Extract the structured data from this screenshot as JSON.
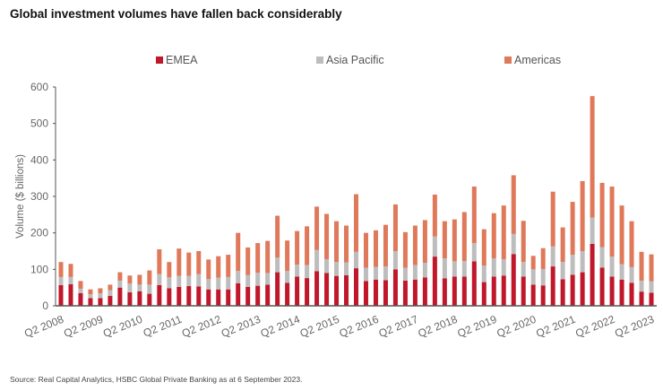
{
  "title": "Global investment volumes have fallen back considerably",
  "source": "Source: Real Capital Analytics, HSBC Global Private Banking as at 6 September 2023.",
  "legend": [
    {
      "label": "EMEA",
      "color": "#c0172b"
    },
    {
      "label": "Asia Pacific",
      "color": "#bdbdbd"
    },
    {
      "label": "Americas",
      "color": "#e0785a"
    }
  ],
  "chart_data": {
    "type": "bar",
    "stacked": true,
    "title": "Global investment volumes have fallen back considerably",
    "xlabel": "",
    "ylabel": "Volume ($ billions)",
    "ylim": [
      0,
      600
    ],
    "yticks": [
      0,
      100,
      200,
      300,
      400,
      500,
      600
    ],
    "grid": false,
    "legend_position": "top",
    "x_tick_labels": [
      "Q2 2008",
      "Q2 2009",
      "Q2 2010",
      "Q2 2011",
      "Q2 2012",
      "Q2 2013",
      "Q2 2014",
      "Q2 2015",
      "Q2 2016",
      "Q2 2017",
      "Q2 2018",
      "Q2 2019",
      "Q2 2020",
      "Q2 2021",
      "Q2 2022",
      "Q2 2023"
    ],
    "categories": [
      "Q2 2008",
      "Q3 2008",
      "Q4 2008",
      "Q1 2009",
      "Q2 2009",
      "Q3 2009",
      "Q4 2009",
      "Q1 2010",
      "Q2 2010",
      "Q3 2010",
      "Q4 2010",
      "Q1 2011",
      "Q2 2011",
      "Q3 2011",
      "Q4 2011",
      "Q1 2012",
      "Q2 2012",
      "Q3 2012",
      "Q4 2012",
      "Q1 2013",
      "Q2 2013",
      "Q3 2013",
      "Q4 2013",
      "Q1 2014",
      "Q2 2014",
      "Q3 2014",
      "Q4 2014",
      "Q1 2015",
      "Q2 2015",
      "Q3 2015",
      "Q4 2015",
      "Q1 2016",
      "Q2 2016",
      "Q3 2016",
      "Q4 2016",
      "Q1 2017",
      "Q2 2017",
      "Q3 2017",
      "Q4 2017",
      "Q1 2018",
      "Q2 2018",
      "Q3 2018",
      "Q4 2018",
      "Q1 2019",
      "Q2 2019",
      "Q3 2019",
      "Q4 2019",
      "Q1 2020",
      "Q2 2020",
      "Q3 2020",
      "Q4 2020",
      "Q1 2021",
      "Q2 2021",
      "Q3 2021",
      "Q4 2021",
      "Q1 2022",
      "Q2 2022",
      "Q3 2022",
      "Q4 2022",
      "Q1 2023",
      "Q2 2023"
    ],
    "series": [
      {
        "name": "EMEA",
        "color": "#c0172b",
        "values": [
          57,
          59,
          35,
          21,
          21,
          27,
          50,
          37,
          40,
          33,
          57,
          48,
          52,
          54,
          53,
          45,
          45,
          45,
          62,
          52,
          55,
          58,
          92,
          63,
          80,
          76,
          95,
          90,
          82,
          84,
          103,
          68,
          72,
          70,
          100,
          69,
          72,
          78,
          135,
          75,
          80,
          80,
          122,
          65,
          80,
          83,
          142,
          80,
          58,
          56,
          108,
          73,
          85,
          92,
          170,
          105,
          80,
          72,
          63,
          39,
          36
        ]
      },
      {
        "name": "Asia Pacific",
        "color": "#bdbdbd",
        "values": [
          22,
          20,
          12,
          11,
          13,
          16,
          19,
          24,
          18,
          25,
          30,
          30,
          30,
          28,
          34,
          28,
          32,
          34,
          34,
          32,
          36,
          32,
          40,
          33,
          33,
          36,
          58,
          38,
          38,
          35,
          45,
          36,
          35,
          38,
          50,
          35,
          40,
          40,
          55,
          55,
          42,
          43,
          50,
          45,
          50,
          45,
          55,
          40,
          42,
          45,
          55,
          47,
          55,
          58,
          72,
          56,
          55,
          42,
          43,
          30,
          31
        ]
      },
      {
        "name": "Americas",
        "color": "#e0785a",
        "values": [
          41,
          36,
          21,
          13,
          14,
          15,
          23,
          22,
          27,
          39,
          68,
          42,
          75,
          64,
          63,
          54,
          59,
          61,
          104,
          76,
          81,
          88,
          115,
          83,
          92,
          106,
          119,
          124,
          112,
          101,
          158,
          96,
          100,
          114,
          128,
          98,
          108,
          117,
          115,
          102,
          115,
          134,
          155,
          100,
          124,
          147,
          161,
          113,
          37,
          57,
          150,
          95,
          145,
          192,
          333,
          176,
          192,
          161,
          126,
          79,
          74
        ]
      }
    ]
  }
}
